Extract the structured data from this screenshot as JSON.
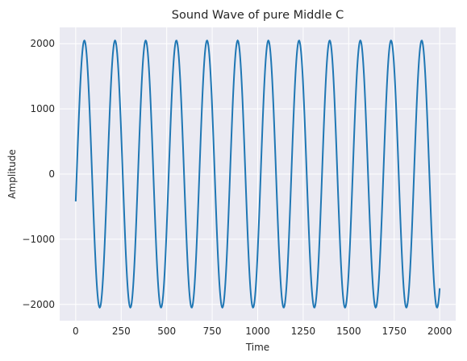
{
  "chart_data": {
    "type": "line",
    "title": "Sound Wave of pure Middle C",
    "xlabel": "Time",
    "ylabel": "Amplitude",
    "xlim": [
      -88,
      2088
    ],
    "ylim": [
      -2250,
      2250
    ],
    "xticks": [
      0,
      250,
      500,
      750,
      1000,
      1250,
      1500,
      1750,
      2000
    ],
    "xtick_labels": [
      "0",
      "250",
      "500",
      "750",
      "1000",
      "1250",
      "1500",
      "1750",
      "2000"
    ],
    "yticks": [
      -2000,
      -1000,
      0,
      1000,
      2000
    ],
    "ytick_labels": [
      "−2000",
      "−1000",
      "0",
      "1000",
      "2000"
    ],
    "grid": true,
    "background_color": "#eaeaf2",
    "series": [
      {
        "color": "#1f77b4",
        "function": "sine",
        "amplitude": 2048,
        "period_samples": 168.5,
        "phase_start_value": -420,
        "x_range": [
          0,
          2000
        ]
      }
    ]
  }
}
